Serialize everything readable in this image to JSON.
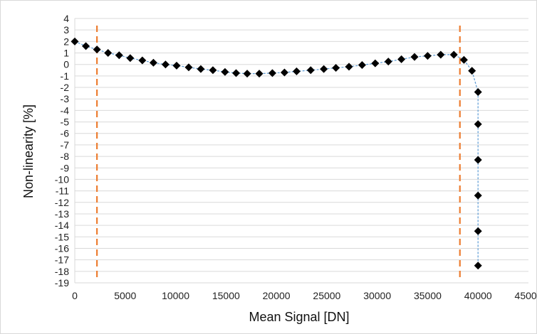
{
  "chart_data": {
    "type": "scatter",
    "title": "",
    "xlabel": "Mean Signal [DN]",
    "ylabel": "Non-linearity [%]",
    "xlim": [
      0,
      45000
    ],
    "ylim": [
      -19,
      4
    ],
    "xticks": [
      0,
      5000,
      10000,
      15000,
      20000,
      25000,
      30000,
      35000,
      40000,
      45000
    ],
    "yticks": [
      4,
      3,
      2,
      1,
      0,
      -1,
      -2,
      -3,
      -4,
      -5,
      -6,
      -7,
      -8,
      -9,
      -10,
      -11,
      -12,
      -13,
      -14,
      -15,
      -16,
      -17,
      -18,
      -19
    ],
    "grid": "horizontal",
    "legend": "none",
    "series": [
      {
        "marker": "diamond",
        "color": "#000000",
        "line_color": "#5b9bd5",
        "line_style": "dashed",
        "x": [
          0,
          1100,
          2200,
          3300,
          4400,
          5500,
          6700,
          7800,
          9000,
          10100,
          11300,
          12500,
          13700,
          14900,
          16000,
          17100,
          18300,
          19600,
          20800,
          22000,
          23400,
          24700,
          25900,
          27200,
          28500,
          29800,
          31100,
          32400,
          33700,
          35000,
          36300,
          37600,
          38600,
          39400,
          40000,
          40000,
          40000,
          40000,
          40000,
          40000
        ],
        "y": [
          2.0,
          1.6,
          1.3,
          1.0,
          0.8,
          0.55,
          0.35,
          0.15,
          0.0,
          -0.1,
          -0.25,
          -0.4,
          -0.5,
          -0.65,
          -0.75,
          -0.8,
          -0.8,
          -0.75,
          -0.7,
          -0.6,
          -0.5,
          -0.4,
          -0.3,
          -0.2,
          -0.05,
          0.1,
          0.25,
          0.45,
          0.65,
          0.75,
          0.85,
          0.85,
          0.4,
          -0.55,
          -2.4,
          -5.2,
          -8.3,
          -11.4,
          -14.5,
          -17.5
        ]
      }
    ],
    "reference_lines": [
      {
        "x": 2200,
        "color": "#ed7d31",
        "style": "dashed"
      },
      {
        "x": 38200,
        "color": "#ed7d31",
        "style": "dashed"
      }
    ]
  }
}
